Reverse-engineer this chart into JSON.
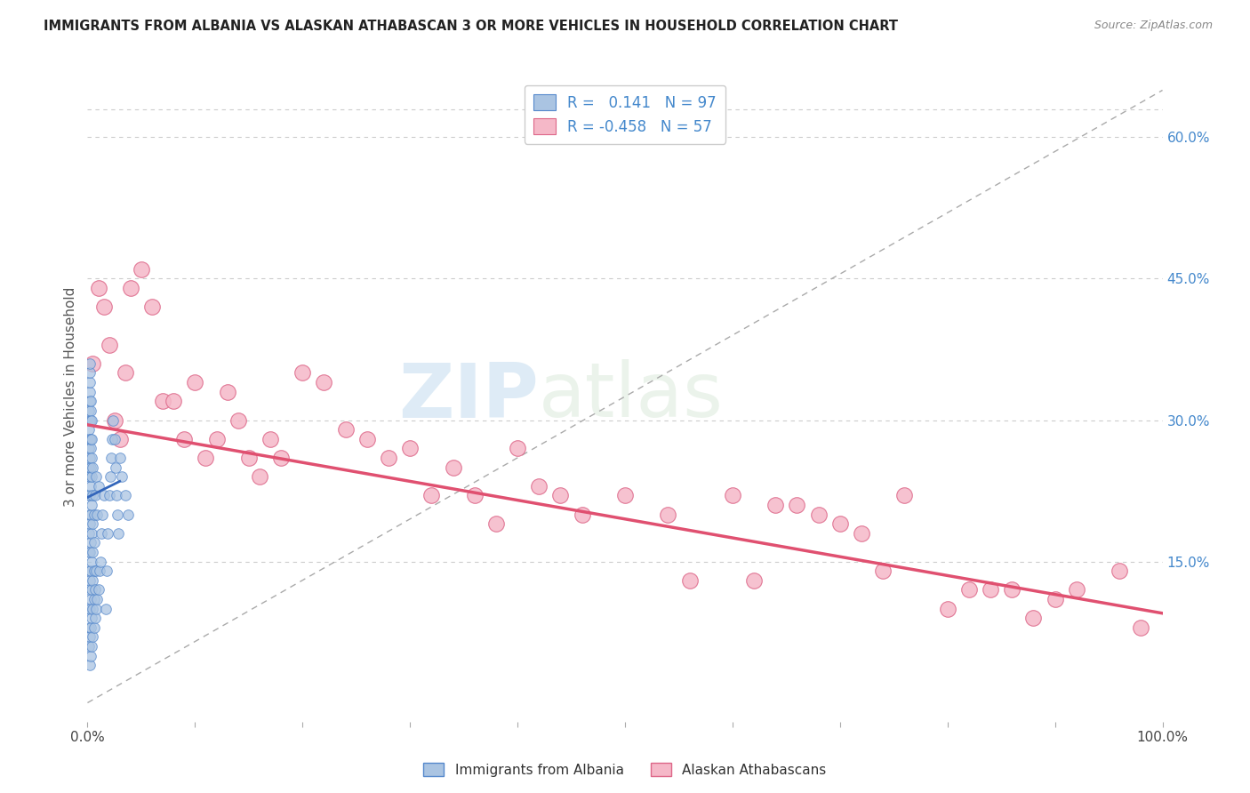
{
  "title": "IMMIGRANTS FROM ALBANIA VS ALASKAN ATHABASCAN 3 OR MORE VEHICLES IN HOUSEHOLD CORRELATION CHART",
  "source_text": "Source: ZipAtlas.com",
  "ylabel": "3 or more Vehicles in Household",
  "watermark_zip": "ZIP",
  "watermark_atlas": "atlas",
  "albania_color": "#aac4e2",
  "albania_edge": "#5588cc",
  "athabascan_color": "#f5b8c8",
  "athabascan_edge": "#dd6688",
  "trendline_albania_color": "#3366bb",
  "trendline_athabascan_color": "#e05070",
  "diag_color": "#aaaaaa",
  "background_color": "#ffffff",
  "grid_color": "#cccccc",
  "right_tick_color": "#4488cc",
  "ytick_labels": [
    "15.0%",
    "30.0%",
    "45.0%",
    "60.0%"
  ],
  "ytick_values": [
    0.15,
    0.3,
    0.45,
    0.6
  ],
  "xmin": 0.0,
  "xmax": 1.0,
  "ymin": -0.02,
  "ymax": 0.67,
  "albania_R": 0.141,
  "albania_N": 97,
  "athabascan_R": -0.458,
  "athabascan_N": 57,
  "albania_trend_x0": 0.0,
  "albania_trend_y0": 0.218,
  "albania_trend_x1": 0.03,
  "albania_trend_y1": 0.235,
  "athabascan_trend_x0": 0.0,
  "athabascan_trend_y0": 0.295,
  "athabascan_trend_x1": 1.0,
  "athabascan_trend_y1": 0.095,
  "albania_scatter_x": [
    0.001,
    0.001,
    0.001,
    0.001,
    0.001,
    0.001,
    0.001,
    0.001,
    0.001,
    0.001,
    0.001,
    0.001,
    0.001,
    0.001,
    0.002,
    0.002,
    0.002,
    0.002,
    0.002,
    0.002,
    0.002,
    0.002,
    0.002,
    0.002,
    0.002,
    0.002,
    0.002,
    0.002,
    0.002,
    0.002,
    0.003,
    0.003,
    0.003,
    0.003,
    0.003,
    0.003,
    0.003,
    0.003,
    0.003,
    0.003,
    0.003,
    0.003,
    0.003,
    0.004,
    0.004,
    0.004,
    0.004,
    0.004,
    0.004,
    0.004,
    0.004,
    0.004,
    0.004,
    0.005,
    0.005,
    0.005,
    0.005,
    0.005,
    0.005,
    0.005,
    0.006,
    0.006,
    0.006,
    0.006,
    0.006,
    0.007,
    0.007,
    0.007,
    0.008,
    0.008,
    0.008,
    0.009,
    0.009,
    0.01,
    0.01,
    0.011,
    0.012,
    0.013,
    0.014,
    0.015,
    0.017,
    0.018,
    0.019,
    0.02,
    0.021,
    0.022,
    0.023,
    0.024,
    0.025,
    0.026,
    0.027,
    0.028,
    0.029,
    0.03,
    0.032,
    0.035,
    0.038
  ],
  "albania_scatter_y": [
    0.06,
    0.08,
    0.1,
    0.12,
    0.14,
    0.16,
    0.18,
    0.2,
    0.22,
    0.24,
    0.25,
    0.27,
    0.29,
    0.31,
    0.04,
    0.07,
    0.1,
    0.13,
    0.16,
    0.19,
    0.22,
    0.24,
    0.26,
    0.28,
    0.3,
    0.32,
    0.33,
    0.34,
    0.35,
    0.36,
    0.05,
    0.08,
    0.11,
    0.14,
    0.17,
    0.2,
    0.23,
    0.25,
    0.27,
    0.28,
    0.3,
    0.31,
    0.32,
    0.06,
    0.09,
    0.12,
    0.15,
    0.18,
    0.21,
    0.24,
    0.26,
    0.28,
    0.3,
    0.07,
    0.1,
    0.13,
    0.16,
    0.19,
    0.22,
    0.25,
    0.08,
    0.11,
    0.14,
    0.17,
    0.2,
    0.09,
    0.12,
    0.22,
    0.1,
    0.14,
    0.24,
    0.11,
    0.2,
    0.12,
    0.23,
    0.14,
    0.15,
    0.18,
    0.2,
    0.22,
    0.1,
    0.14,
    0.18,
    0.22,
    0.24,
    0.26,
    0.28,
    0.3,
    0.28,
    0.25,
    0.22,
    0.2,
    0.18,
    0.26,
    0.24,
    0.22,
    0.2
  ],
  "athabascan_scatter_x": [
    0.005,
    0.01,
    0.015,
    0.02,
    0.025,
    0.03,
    0.035,
    0.04,
    0.05,
    0.06,
    0.07,
    0.08,
    0.09,
    0.1,
    0.11,
    0.12,
    0.13,
    0.14,
    0.15,
    0.16,
    0.17,
    0.18,
    0.2,
    0.22,
    0.24,
    0.26,
    0.28,
    0.3,
    0.32,
    0.34,
    0.36,
    0.38,
    0.4,
    0.42,
    0.44,
    0.46,
    0.5,
    0.54,
    0.56,
    0.6,
    0.62,
    0.64,
    0.66,
    0.68,
    0.7,
    0.72,
    0.74,
    0.76,
    0.8,
    0.82,
    0.84,
    0.86,
    0.88,
    0.9,
    0.92,
    0.96,
    0.98
  ],
  "athabascan_scatter_y": [
    0.36,
    0.44,
    0.42,
    0.38,
    0.3,
    0.28,
    0.35,
    0.44,
    0.46,
    0.42,
    0.32,
    0.32,
    0.28,
    0.34,
    0.26,
    0.28,
    0.33,
    0.3,
    0.26,
    0.24,
    0.28,
    0.26,
    0.35,
    0.34,
    0.29,
    0.28,
    0.26,
    0.27,
    0.22,
    0.25,
    0.22,
    0.19,
    0.27,
    0.23,
    0.22,
    0.2,
    0.22,
    0.2,
    0.13,
    0.22,
    0.13,
    0.21,
    0.21,
    0.2,
    0.19,
    0.18,
    0.14,
    0.22,
    0.1,
    0.12,
    0.12,
    0.12,
    0.09,
    0.11,
    0.12,
    0.14,
    0.08
  ]
}
